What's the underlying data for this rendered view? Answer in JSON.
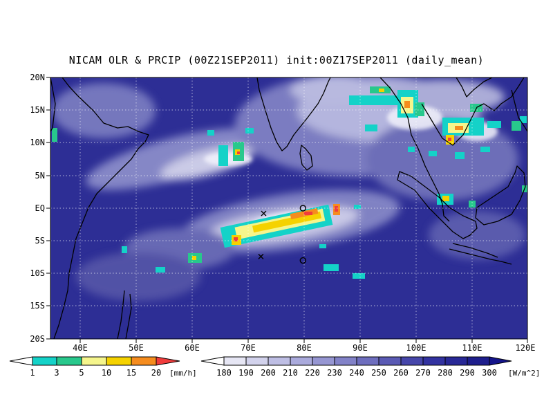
{
  "title": "NICAM OLR & PRCIP (00Z21SEP2011) init:00Z17SEP2011 (daily_mean)",
  "map": {
    "lon_ticks": [
      "40E",
      "50E",
      "60E",
      "70E",
      "80E",
      "90E",
      "100E",
      "110E",
      "120E"
    ],
    "lat_ticks": [
      "20N",
      "15N",
      "10N",
      "5N",
      "EQ",
      "5S",
      "10S",
      "15S",
      "20S"
    ],
    "lon_range": [
      35,
      120
    ],
    "lat_range": [
      -20,
      20
    ],
    "grid": "dotted",
    "markers": [
      {
        "type": "x",
        "lon": 73,
        "lat": -0.8
      },
      {
        "type": "circle",
        "lon": 80,
        "lat": 0
      },
      {
        "type": "x",
        "lon": 72.5,
        "lat": -7.4
      },
      {
        "type": "circle",
        "lon": 80,
        "lat": -8
      }
    ]
  },
  "colors": {
    "ocean_clear": "#2b2c92",
    "cloud_high": "#f2f2fb",
    "land_outline": "#000000"
  },
  "precip_legend": {
    "labels": [
      "1",
      "3",
      "5",
      "10",
      "15",
      "20"
    ],
    "unit": "[mm/h]",
    "colors": [
      "#ffffff",
      "#14d2c8",
      "#28c88c",
      "#f5f58c",
      "#f5d200",
      "#f58c1e",
      "#f03c3c"
    ]
  },
  "olr_legend": {
    "labels": [
      "180",
      "190",
      "200",
      "210",
      "220",
      "230",
      "240",
      "250",
      "260",
      "270",
      "280",
      "290",
      "300"
    ],
    "unit": "[W/m^2]",
    "colors": [
      "#ffffff",
      "#e6e6f4",
      "#d2d2ec",
      "#bebee4",
      "#aaaadc",
      "#9696d2",
      "#8282c8",
      "#6e6ebe",
      "#5a5ab4",
      "#4646aa",
      "#3232a0",
      "#282896",
      "#1e1e8c",
      "#14148a"
    ]
  }
}
